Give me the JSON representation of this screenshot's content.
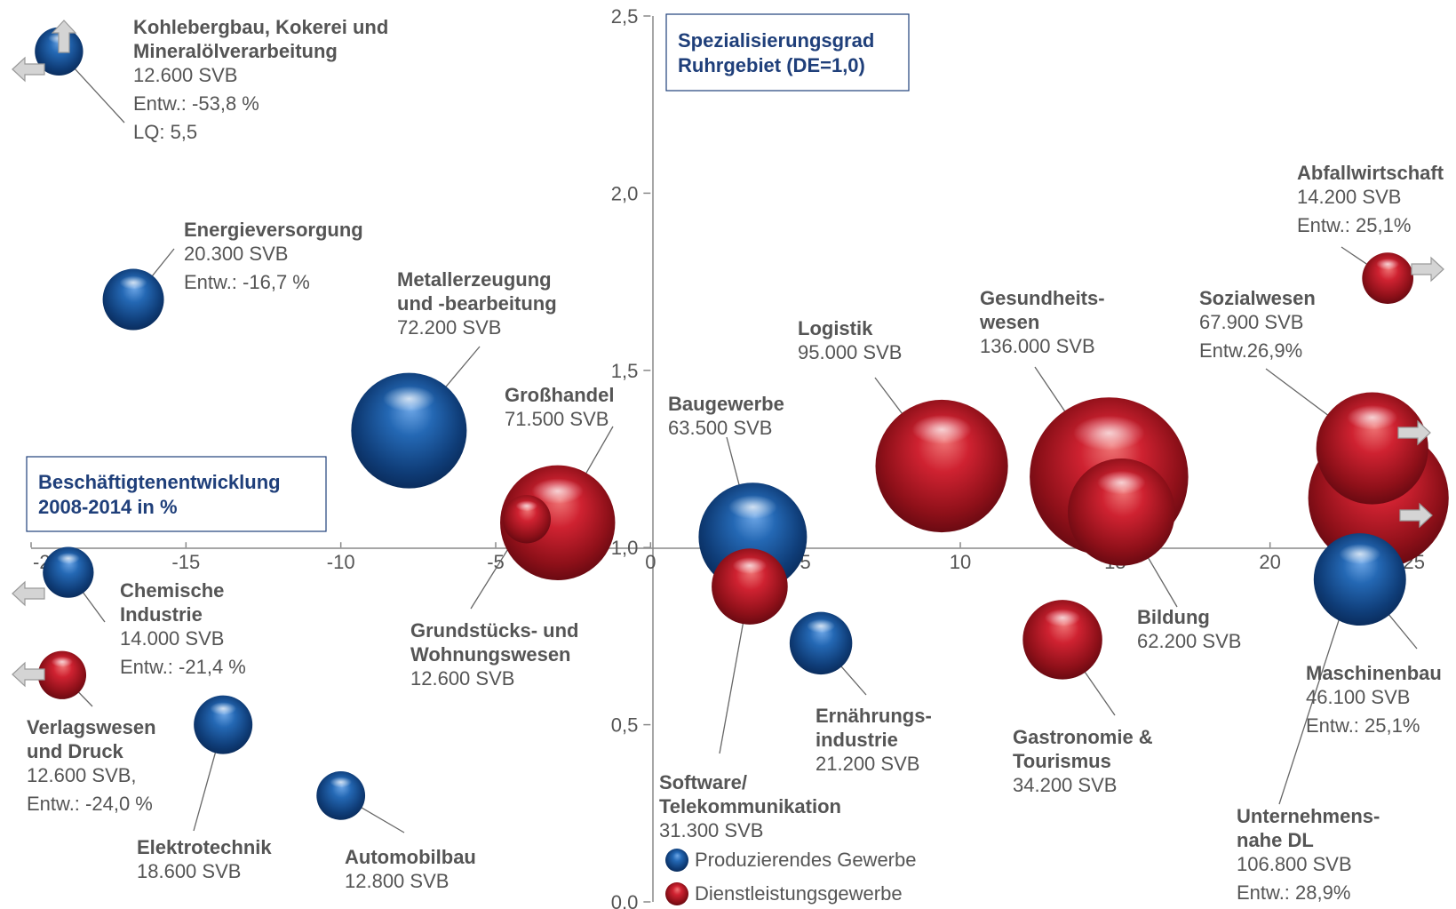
{
  "chart_data": {
    "type": "scatter",
    "title": "",
    "xlabel": "Beschäftigtenentwicklung 2008-2014  in %",
    "ylabel": "Spezialisierungsgrad Ruhrgebiet (DE=1,0)",
    "xlim": [
      -20,
      25
    ],
    "ylim": [
      0,
      2.5
    ],
    "x_ticks": [
      "-20",
      "-15",
      "-10",
      "-5",
      "0",
      "5",
      "10",
      "15",
      "20",
      "25"
    ],
    "y_ticks": [
      "0,0",
      "0,5",
      "1,0",
      "1,5",
      "2,0",
      "2,5"
    ],
    "grid": false,
    "legend_position": "bottom-center",
    "series": [
      {
        "name": "Produzierendes Gewerbe",
        "color": "#1c5ea3"
      },
      {
        "name": "Dienstleistungsgewerbe",
        "color": "#c51f2c"
      }
    ],
    "points": [
      {
        "id": "kohle",
        "series": 0,
        "x": -19.1,
        "y": 2.4,
        "svb": 12600,
        "lines": [
          "Kohlebergbau, Kokerei  und",
          "Mineralölverarbeitung",
          "12.600 SVB",
          "Entw.: -53,8 %",
          "LQ: 5,5"
        ]
      },
      {
        "id": "energie",
        "series": 0,
        "x": -16.7,
        "y": 1.7,
        "svb": 20300,
        "lines": [
          "Energieversorgung",
          "20.300 SVB",
          "Entw.: -16,7 %"
        ]
      },
      {
        "id": "metall",
        "series": 0,
        "x": -7.8,
        "y": 1.33,
        "svb": 72200,
        "lines": [
          "Metallerzeugung",
          "und -bearbeitung",
          "72.200 SVB"
        ]
      },
      {
        "id": "grosshandel",
        "series": 1,
        "x": -3.0,
        "y": 1.07,
        "svb": 71500,
        "lines": [
          "Großhandel",
          "71.500 SVB"
        ]
      },
      {
        "id": "grundstuecke",
        "series": 1,
        "x": -4.0,
        "y": 1.08,
        "svb": 12600,
        "lines": [
          "Grundstücks- und",
          "Wohnungswesen",
          "12.600 SVB"
        ]
      },
      {
        "id": "chemie",
        "series": 0,
        "x": -18.8,
        "y": 0.93,
        "svb": 14000,
        "lines": [
          "Chemische",
          "Industrie",
          "14.000 SVB",
          "Entw.: -21,4 %"
        ]
      },
      {
        "id": "verlag",
        "series": 1,
        "x": -19.0,
        "y": 0.64,
        "svb": 12600,
        "lines": [
          "Verlagswesen",
          "und Druck",
          "12.600 SVB,",
          "Entw.: -24,0 %"
        ]
      },
      {
        "id": "elektro",
        "series": 0,
        "x": -13.8,
        "y": 0.5,
        "svb": 18600,
        "lines": [
          "Elektrotechnik",
          "18.600 SVB"
        ]
      },
      {
        "id": "auto",
        "series": 0,
        "x": -10.0,
        "y": 0.3,
        "svb": 12800,
        "lines": [
          "Automobilbau",
          "12.800 SVB"
        ]
      },
      {
        "id": "bau",
        "series": 0,
        "x": 3.3,
        "y": 1.03,
        "svb": 63500,
        "lines": [
          "Baugewerbe",
          "63.500 SVB"
        ]
      },
      {
        "id": "software",
        "series": 1,
        "x": 3.2,
        "y": 0.89,
        "svb": 31300,
        "lines": [
          "Software/",
          "Telekommunikation",
          "31.300 SVB"
        ]
      },
      {
        "id": "ernaehrung",
        "series": 0,
        "x": 5.5,
        "y": 0.73,
        "svb": 21200,
        "lines": [
          "Ernährungs-",
          "industrie",
          "21.200 SVB"
        ]
      },
      {
        "id": "logistik",
        "series": 1,
        "x": 9.4,
        "y": 1.23,
        "svb": 95000,
        "lines": [
          "Logistik",
          "95.000 SVB"
        ]
      },
      {
        "id": "gesundheit",
        "series": 1,
        "x": 14.8,
        "y": 1.2,
        "svb": 136000,
        "lines": [
          "Gesundheits-",
          "wesen",
          "136.000 SVB"
        ]
      },
      {
        "id": "bildung",
        "series": 1,
        "x": 15.2,
        "y": 1.1,
        "svb": 62200,
        "lines": [
          "Bildung",
          "62.200 SVB"
        ]
      },
      {
        "id": "gastro",
        "series": 1,
        "x": 13.3,
        "y": 0.74,
        "svb": 34200,
        "lines": [
          "Gastronomie &",
          "Tourismus",
          "34.200 SVB"
        ]
      },
      {
        "id": "unternehmen",
        "series": 1,
        "x": 23.5,
        "y": 1.14,
        "svb": 106800,
        "lines": [
          "Unternehmens-",
          "nahe DL",
          "106.800 SVB",
          "Entw.: 28,9%"
        ]
      },
      {
        "id": "sozial",
        "series": 1,
        "x": 23.3,
        "y": 1.28,
        "svb": 67900,
        "lines": [
          "Sozialwesen",
          "67.900 SVB",
          "Entw.26,9%"
        ]
      },
      {
        "id": "maschinen",
        "series": 0,
        "x": 22.9,
        "y": 0.91,
        "svb": 46100,
        "lines": [
          "Maschinenbau",
          "46.100 SVB",
          "Entw.: 25,1%"
        ]
      },
      {
        "id": "abfall",
        "series": 1,
        "x": 23.8,
        "y": 1.76,
        "svb": 14200,
        "lines": [
          "Abfallwirtschaft",
          "14.200 SVB",
          "Entw.: 25,1%"
        ]
      }
    ]
  }
}
